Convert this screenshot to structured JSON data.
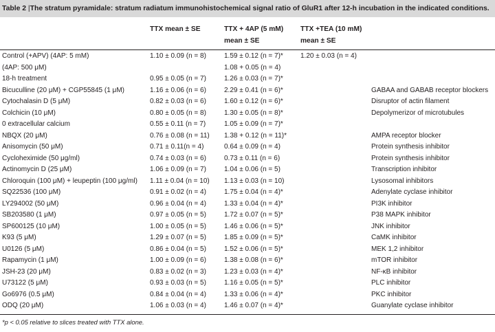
{
  "caption": {
    "label": "Table 2",
    "sep": " |",
    "text": "The stratum pyramidale: stratum radiatum immunohistochemical signal ratio of GluR1 after 12-h incubation in the indicated conditions."
  },
  "columns": [
    "",
    "TTX mean ± SE",
    "TTX + 4AP (5 mM) mean ± SE",
    "TTX +TEA (10 mM) mean ± SE",
    ""
  ],
  "rows": [
    [
      "Control (+APV) (4AP: 5 mM)",
      "1.10 ± 0.09 (n = 8)",
      "1.59 ± 0.12 (n = 7)*",
      "1.20 ± 0.03 (n = 4)",
      ""
    ],
    [
      "(4AP: 500 μM)",
      "",
      "1.08 + 0.05 (n = 4)",
      "",
      ""
    ],
    [
      "18-h treatment",
      "0.95 ± 0.05 (n = 7)",
      "1.26 ± 0.03 (n = 7)*",
      "",
      ""
    ],
    [
      "Bicuculline (20 μM) + CGP55845 (1 μM)",
      "1.16 ± 0.06 (n = 6)",
      "2.29 ± 0.41 (n = 6)*",
      "",
      "GABAA and GABAB receptor blockers"
    ],
    [
      "Cytochalasin D (5 μM)",
      "0.82 ± 0.03 (n = 6)",
      "1.60 ± 0.12 (n = 6)*",
      "",
      "Disruptor of actin filament"
    ],
    [
      "Colchicin (10 μM)",
      "0.80 ± 0.05 (n = 8)",
      "1.30 ± 0.05 (n = 8)*",
      "",
      "Depolymerizor of microtubules"
    ],
    [
      "0 extracellular calcium",
      "0.55 ± 0.11 (n = 7)",
      "1.05 ± 0.09 (n = 7)*",
      "",
      ""
    ],
    [
      "NBQX (20 μM)",
      "0.76 ± 0.08 (n = 11)",
      "1.38 + 0.12 (n = 11)*",
      "",
      "AMPA receptor blocker"
    ],
    [
      "Anisomycin (50 μM)",
      "0.71 ± 0.11(n = 4)",
      "0.64 ± 0.09 (n = 4)",
      "",
      "Protein synthesis inhibitor"
    ],
    [
      "Cycloheximide (50 μg/ml)",
      "0.74 ± 0.03 (n = 6)",
      "0.73 ± 0.11 (n = 6)",
      "",
      "Protein synthesis inhibitor"
    ],
    [
      "Actinomycin D (25 μM)",
      "1.06 ± 0.09 (n = 7)",
      "1.04 ± 0.06 (n = 5)",
      "",
      "Transcription inhibitor"
    ],
    [
      "Chloroquin (100 μM) + leupeptin (100 μg/ml)",
      "1.11 ± 0.04 (n = 10)",
      "1.13 ± 0.03 (n = 10)",
      "",
      "Lysosomal inhibitors"
    ],
    [
      "SQ22536 (100 μM)",
      "0.91 ± 0.02 (n = 4)",
      "1.75 ± 0.04 (n = 4)*",
      "",
      "Adenylate cyclase inhibitor"
    ],
    [
      "LY294002 (50 μM)",
      "0.96 ± 0.04 (n = 4)",
      "1.33 ± 0.04 (n = 4)*",
      "",
      "PI3K inhibitor"
    ],
    [
      "SB203580 (1 μM)",
      "0.97 ± 0.05 (n = 5)",
      "1.72 ± 0.07 (n = 5)*",
      "",
      "P38 MAPK inhibitor"
    ],
    [
      "SP600125 (10 μM)",
      "1.00 ± 0.05 (n = 5)",
      "1.46 ± 0.06 (n = 5)*",
      "",
      "JNK inhibitor"
    ],
    [
      "K93 (5 μM)",
      "1.29 ± 0.07 (n = 5)",
      "1.85 ± 0.09 (n = 5)*",
      "",
      "CaMK inhibitor"
    ],
    [
      "U0126 (5 μM)",
      "0.86 ± 0.04 (n = 5)",
      "1.52 ± 0.06 (n = 5)*",
      "",
      "MEK 1,2 inhibitor"
    ],
    [
      "Rapamycin (1 μM)",
      "1.00 ± 0.09 (n = 6)",
      "1.38 ± 0.08 (n = 6)*",
      "",
      "mTOR inhibitor"
    ],
    [
      "JSH-23 (20 μM)",
      "0.83 ± 0.02 (n = 3)",
      "1.23 ± 0.03 (n = 4)*",
      "",
      "NF-κB inhibitor"
    ],
    [
      "U73122 (5 μM)",
      "0.93 ± 0.03 (n = 5)",
      "1.16 ± 0.05 (n = 5)*",
      "",
      "PLC inhibitor"
    ],
    [
      "Go6976 (0.5 μM)",
      "0.84 ± 0.04 (n = 4)",
      "1.33 ± 0.06 (n = 4)*",
      "",
      "PKC inhibitor"
    ],
    [
      "ODQ (20 μM)",
      "1.06 ± 0.03 (n = 4)",
      "1.46 ± 0.07 (n = 4)*",
      "",
      "Guanylate cyclase inhibitor"
    ]
  ],
  "footnote": "*p < 0.05 relative to slices treated with TTX alone."
}
